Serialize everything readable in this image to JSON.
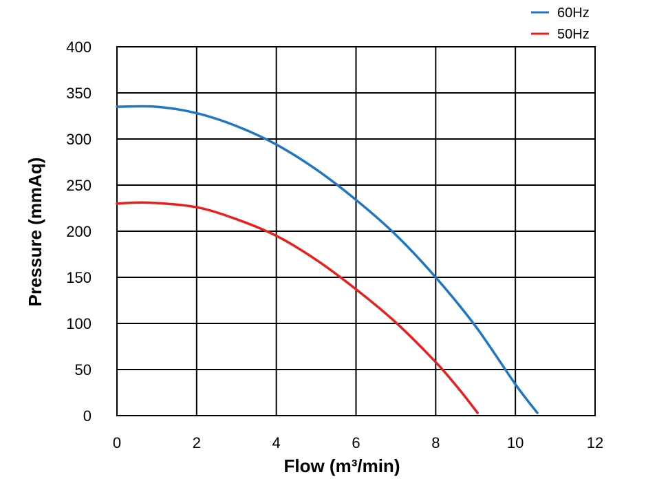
{
  "chart_data": {
    "type": "line",
    "xlabel": "Flow (m³/min)",
    "ylabel": "Pressure (mmAq)",
    "xlim": [
      0,
      12
    ],
    "ylim": [
      0,
      400
    ],
    "x_ticks": [
      "0",
      "2",
      "4",
      "6",
      "8",
      "10",
      "12"
    ],
    "y_ticks": [
      "0",
      "50",
      "100",
      "150",
      "200",
      "250",
      "300",
      "350",
      "400"
    ],
    "grid": true,
    "legend_position": "top-right",
    "series": [
      {
        "name": "60Hz",
        "color": "#1f77c4",
        "points": [
          [
            0,
            335
          ],
          [
            1,
            335
          ],
          [
            2,
            328
          ],
          [
            3,
            314
          ],
          [
            4,
            294
          ],
          [
            5,
            267
          ],
          [
            6,
            234
          ],
          [
            7,
            196
          ],
          [
            8,
            150
          ],
          [
            9,
            97
          ],
          [
            10,
            34
          ],
          [
            10.55,
            3
          ]
        ]
      },
      {
        "name": "50Hz",
        "color": "#e8201c",
        "points": [
          [
            0,
            230
          ],
          [
            0.8,
            231
          ],
          [
            2,
            226
          ],
          [
            3,
            213
          ],
          [
            4,
            195
          ],
          [
            5,
            169
          ],
          [
            6,
            137
          ],
          [
            7,
            101
          ],
          [
            8,
            58
          ],
          [
            8.6,
            28
          ],
          [
            9.05,
            3
          ]
        ]
      }
    ]
  }
}
